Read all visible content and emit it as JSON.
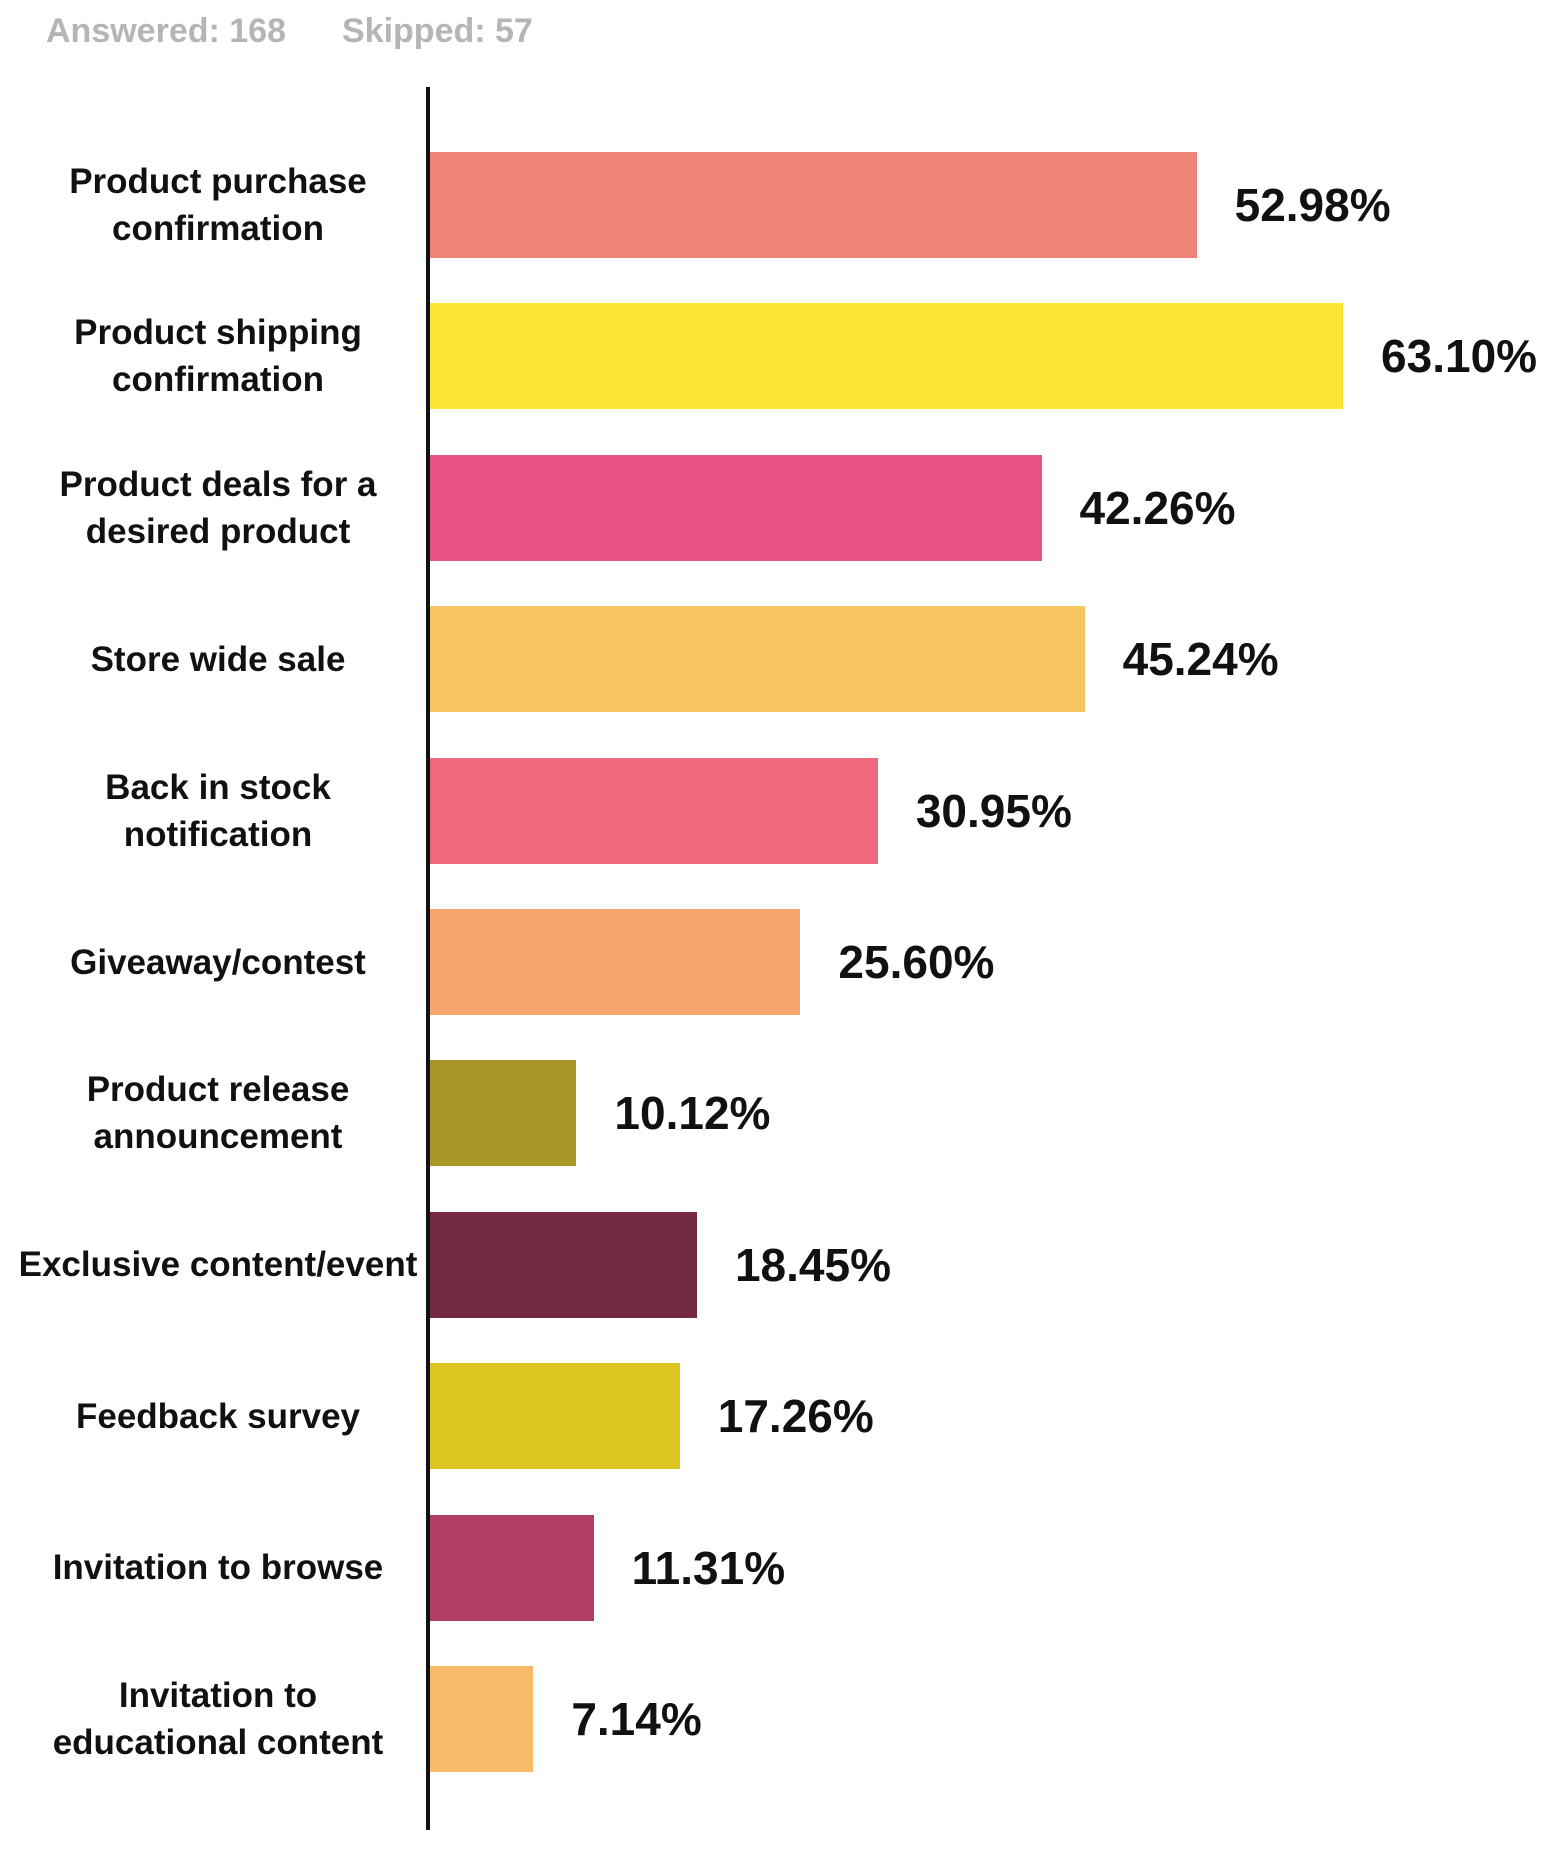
{
  "header": {
    "answered": "Answered: 168",
    "skipped": "Skipped: 57"
  },
  "chart_data": {
    "type": "bar",
    "orientation": "horizontal",
    "categories": [
      "Product purchase confirmation",
      "Product shipping confirmation",
      "Product deals for a desired product",
      "Store wide sale",
      "Back in stock notification",
      "Giveaway/contest",
      "Product release announcement",
      "Exclusive content/event",
      "Feedback survey",
      "Invitation to browse",
      "Invitation to educational content"
    ],
    "values": [
      52.98,
      63.1,
      42.26,
      45.24,
      30.95,
      25.6,
      10.12,
      18.45,
      17.26,
      11.31,
      7.14
    ],
    "value_labels": [
      "52.98%",
      "63.10%",
      "42.26%",
      "45.24%",
      "30.95%",
      "25.60%",
      "10.12%",
      "18.45%",
      "17.26%",
      "11.31%",
      "7.14%"
    ],
    "colors": [
      "#f08377",
      "#fce535",
      "#e95386",
      "#f7c564",
      "#ee6a7c",
      "#f5a66f",
      "#a99626",
      "#732944",
      "#dcc622",
      "#b03e64",
      "#f6ba69"
    ]
  }
}
